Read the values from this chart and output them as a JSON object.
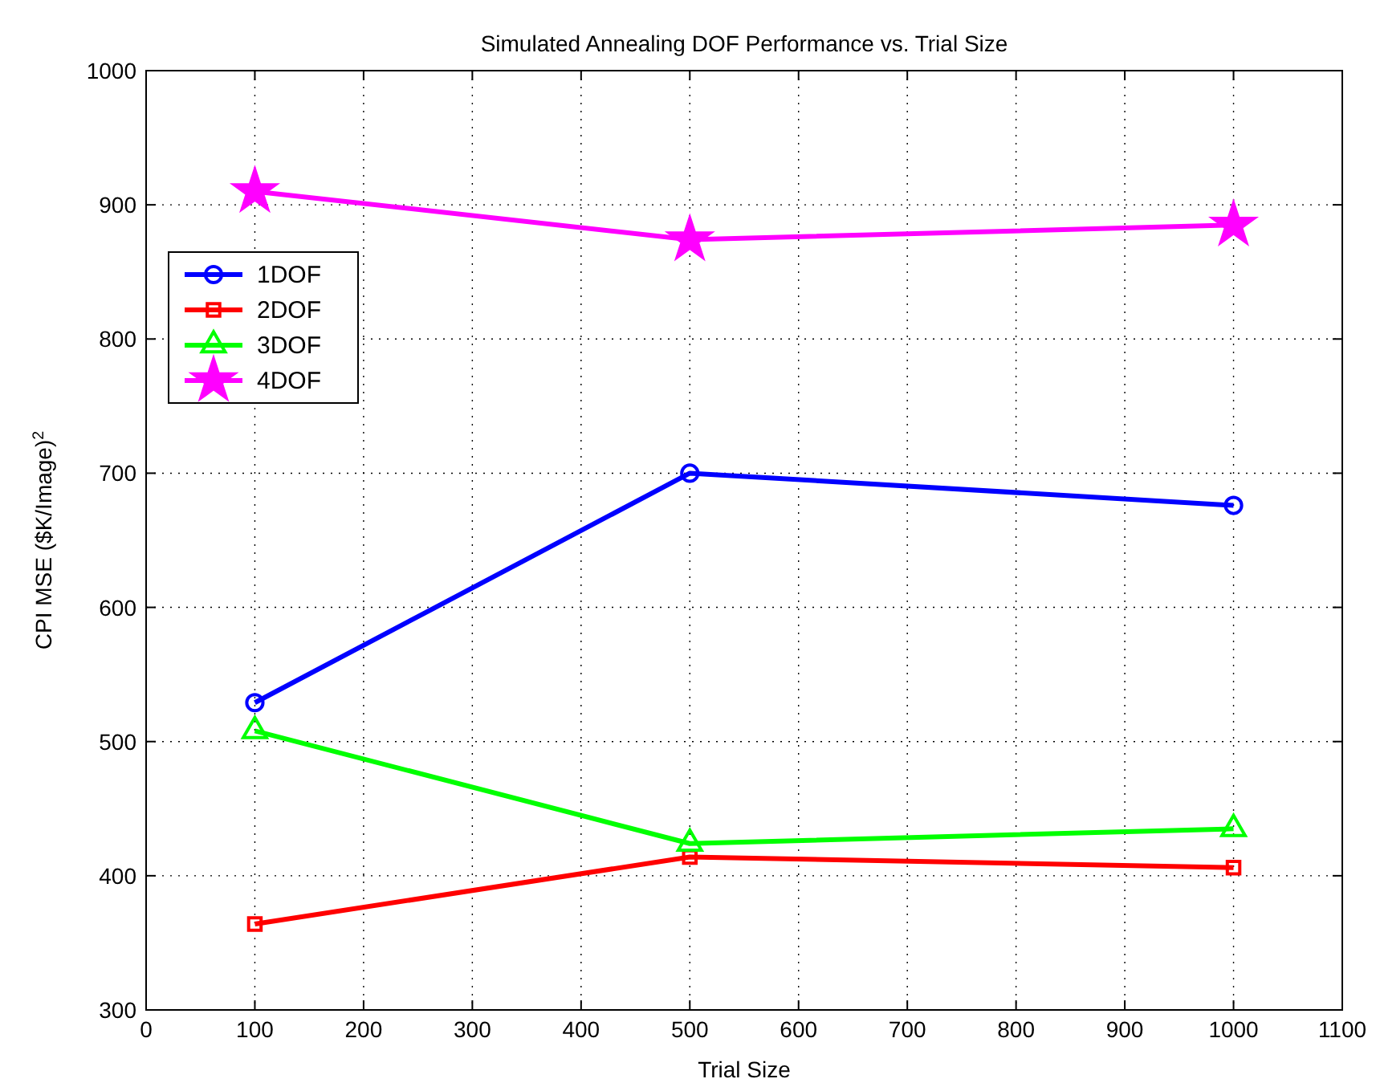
{
  "chart_data": {
    "type": "line",
    "title": "Simulated Annealing DOF Performance vs. Trial Size",
    "xlabel": "Trial Size",
    "ylabel": "CPI MSE ($K/Image)$^{2}$",
    "x": [
      100,
      500,
      1000
    ],
    "series": [
      {
        "name": "1DOF",
        "color": "#0000ff",
        "marker": "circle",
        "values": [
          529,
          700,
          676
        ]
      },
      {
        "name": "2DOF",
        "color": "#ff0000",
        "marker": "square",
        "values": [
          364,
          414,
          406
        ]
      },
      {
        "name": "3DOF",
        "color": "#00ff00",
        "marker": "triangle",
        "values": [
          508,
          424,
          435
        ]
      },
      {
        "name": "4DOF",
        "color": "#ff00ff",
        "marker": "star",
        "values": [
          910,
          874,
          885
        ]
      }
    ],
    "xlim": [
      0,
      1100
    ],
    "xticks": [
      0,
      100,
      200,
      300,
      400,
      500,
      600,
      700,
      800,
      900,
      1000,
      1100
    ],
    "ylim": [
      300,
      1000
    ],
    "yticks": [
      300,
      400,
      500,
      600,
      700,
      800,
      900,
      1000
    ],
    "grid": true,
    "legend": "top left",
    "line_style": "solid"
  }
}
